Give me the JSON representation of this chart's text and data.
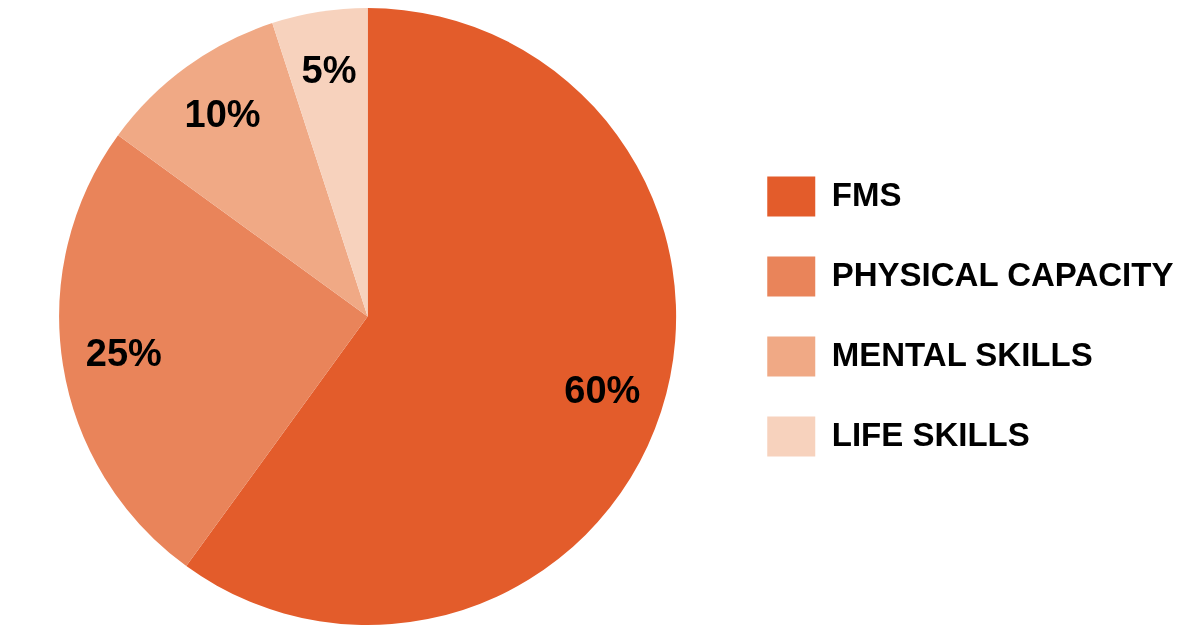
{
  "chart_data": {
    "type": "pie",
    "categories": [
      "FMS",
      "PHYSICAL CAPACITY",
      "MENTAL SKILLS",
      "LIFE SKILLS"
    ],
    "values": [
      60,
      25,
      10,
      5
    ],
    "colors": [
      "#e35c2b",
      "#e9845a",
      "#f0a985",
      "#f7d2bd"
    ],
    "value_labels": [
      "60%",
      "25%",
      "10%",
      "5%"
    ],
    "legend": "right"
  }
}
